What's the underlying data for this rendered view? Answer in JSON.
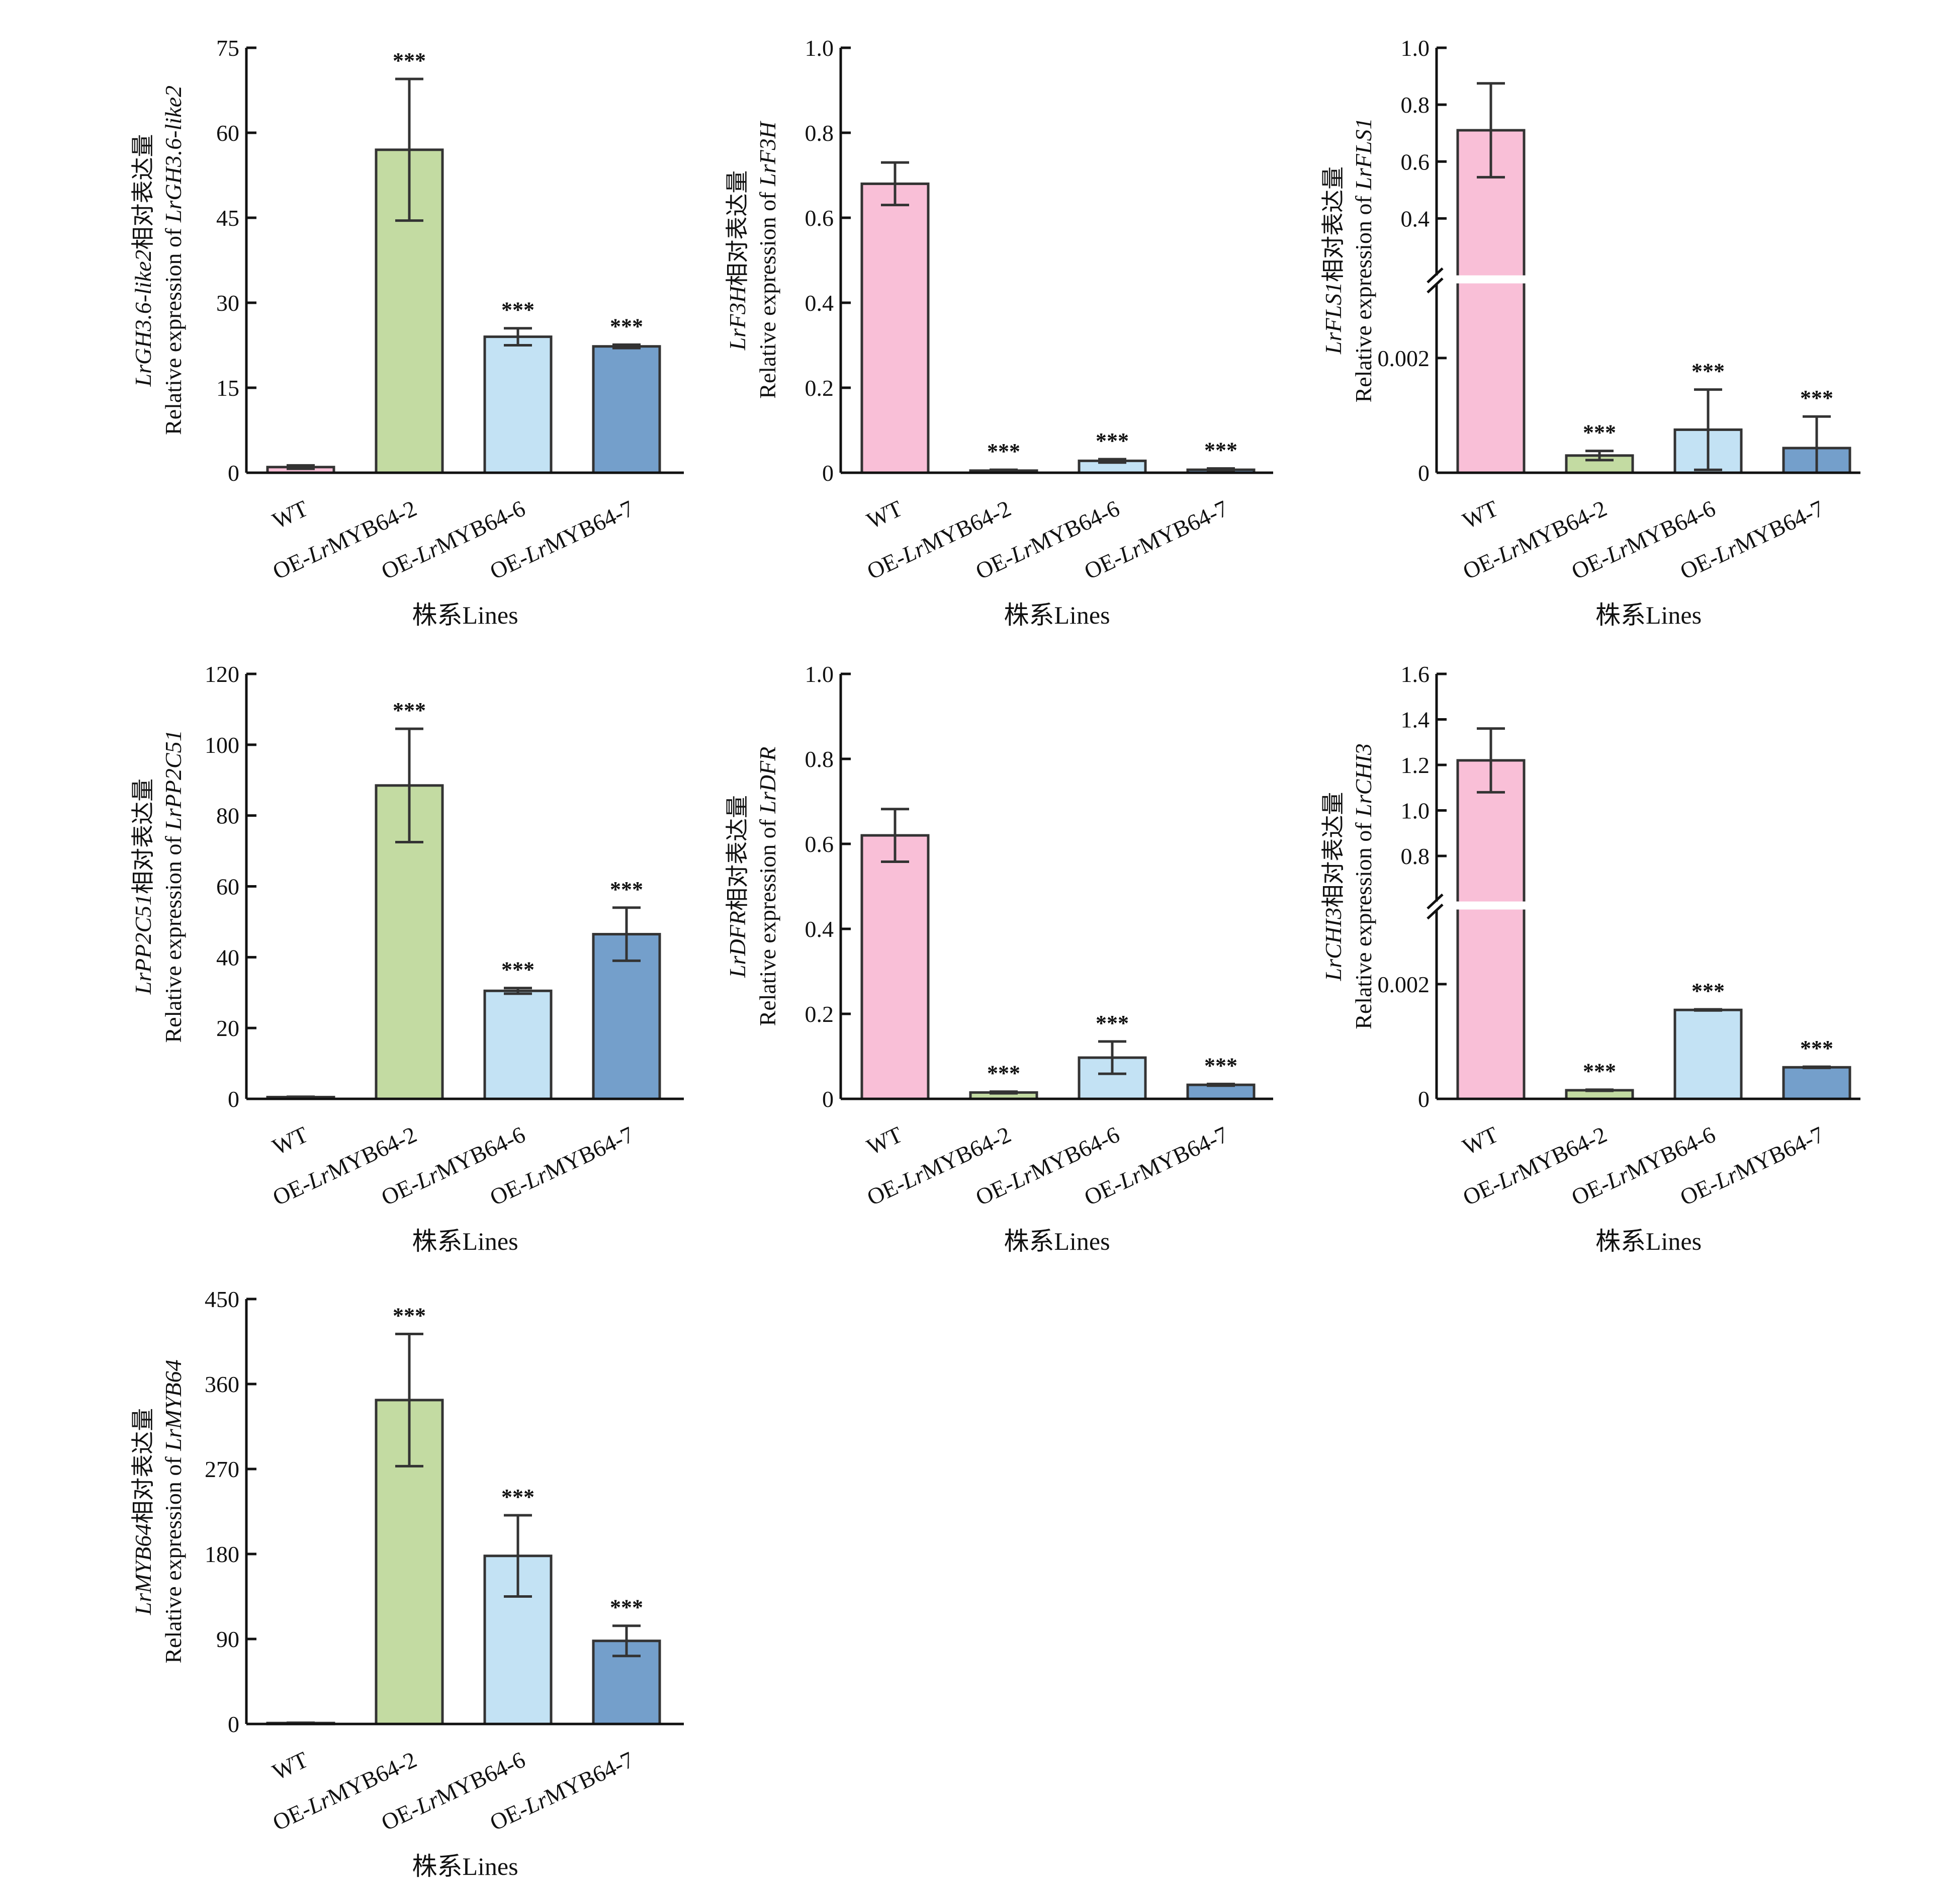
{
  "chart_data": [
    {
      "type": "bar",
      "gene": "LrGH3.6-like2",
      "ylabel_cn": "相对表达量",
      "ylabel_en": "Relative expression of ",
      "xlabel": "株系Lines",
      "categories": [
        "WT",
        "OE-LrMYB64-2",
        "OE-LrMYB64-6",
        "OE-LrMYB64-7"
      ],
      "values": [
        1.0,
        57.0,
        24.0,
        22.3
      ],
      "errors": [
        0.3,
        12.5,
        1.5,
        0.3
      ],
      "significance": [
        "",
        "***",
        "***",
        "***"
      ],
      "ylim": [
        0,
        75
      ],
      "ticks": [
        0,
        15,
        30,
        45,
        60,
        75
      ],
      "tick_labels": [
        "0",
        "15",
        "30",
        "45",
        "60",
        "75"
      ]
    },
    {
      "type": "bar",
      "gene": "LrF3H",
      "ylabel_cn": "相对表达量",
      "ylabel_en": "Relative expression of ",
      "xlabel": "株系Lines",
      "categories": [
        "WT",
        "OE-LrMYB64-2",
        "OE-LrMYB64-6",
        "OE-LrMYB64-7"
      ],
      "values": [
        0.68,
        0.005,
        0.028,
        0.007
      ],
      "errors": [
        0.05,
        0.002,
        0.004,
        0.003
      ],
      "significance": [
        "",
        "***",
        "***",
        "***"
      ],
      "ylim": [
        0,
        1.0
      ],
      "ticks": [
        0,
        0.2,
        0.4,
        0.6,
        0.8,
        1.0
      ],
      "tick_labels": [
        "0",
        "0.2",
        "0.4",
        "0.6",
        "0.8",
        "1.0"
      ]
    },
    {
      "type": "bar",
      "broken_axis": true,
      "gene": "LrFLS1",
      "ylabel_cn": "相对表达量",
      "ylabel_en": "Relative expression of ",
      "xlabel": "株系Lines",
      "categories": [
        "WT",
        "OE-LrMYB64-2",
        "OE-LrMYB64-6",
        "OE-LrMYB64-7"
      ],
      "values": [
        0.71,
        0.0003,
        0.00075,
        0.00043
      ],
      "errors": [
        0.165,
        8e-05,
        0.0007,
        0.00055
      ],
      "significance": [
        "",
        "***",
        "***",
        "***"
      ],
      "lower_range": [
        0,
        0.0033
      ],
      "lower_ticks": [
        0,
        0.002
      ],
      "lower_tick_labels": [
        "0",
        "0.002"
      ],
      "upper_range": [
        0.2,
        1.0
      ],
      "upper_ticks": [
        0.4,
        0.6,
        0.8,
        1.0
      ],
      "upper_tick_labels": [
        "0.4",
        "0.6",
        "0.8",
        "1.0"
      ]
    },
    {
      "type": "bar",
      "gene": "LrPP2C51",
      "ylabel_cn": "相对表达量",
      "ylabel_en": "Relative expression of ",
      "xlabel": "株系Lines",
      "categories": [
        "WT",
        "OE-LrMYB64-2",
        "OE-LrMYB64-6",
        "OE-LrMYB64-7"
      ],
      "values": [
        0.5,
        88.5,
        30.5,
        46.5
      ],
      "errors": [
        0.1,
        16.0,
        0.8,
        7.5
      ],
      "significance": [
        "",
        "***",
        "***",
        "***"
      ],
      "ylim": [
        0,
        120
      ],
      "ticks": [
        0,
        20,
        40,
        60,
        80,
        100,
        120
      ],
      "tick_labels": [
        "0",
        "20",
        "40",
        "60",
        "80",
        "100",
        "120"
      ]
    },
    {
      "type": "bar",
      "gene": "LrDFR",
      "ylabel_cn": "相对表达量",
      "ylabel_en": "Relative expression of ",
      "xlabel": "株系Lines",
      "categories": [
        "WT",
        "OE-LrMYB64-2",
        "OE-LrMYB64-6",
        "OE-LrMYB64-7"
      ],
      "values": [
        0.62,
        0.015,
        0.097,
        0.033
      ],
      "errors": [
        0.062,
        0.002,
        0.038,
        0.002
      ],
      "significance": [
        "",
        "***",
        "***",
        "***"
      ],
      "ylim": [
        0,
        1.0
      ],
      "ticks": [
        0,
        0.2,
        0.4,
        0.6,
        0.8,
        1.0
      ],
      "tick_labels": [
        "0",
        "0.2",
        "0.4",
        "0.6",
        "0.8",
        "1.0"
      ]
    },
    {
      "type": "bar",
      "broken_axis": true,
      "gene": "LrCHI3",
      "ylabel_cn": "相对表达量",
      "ylabel_en": "Relative expression of ",
      "xlabel": "株系Lines",
      "categories": [
        "WT",
        "OE-LrMYB64-2",
        "OE-LrMYB64-6",
        "OE-LrMYB64-7"
      ],
      "values": [
        1.22,
        0.00015,
        0.00155,
        0.00055
      ],
      "errors": [
        0.14,
        1e-05,
        1e-05,
        1e-05
      ],
      "significance": [
        "",
        "***",
        "***",
        "***"
      ],
      "lower_range": [
        0,
        0.0033
      ],
      "lower_ticks": [
        0,
        0.002
      ],
      "lower_tick_labels": [
        "0",
        "0.002"
      ],
      "upper_range": [
        0.6,
        1.6
      ],
      "upper_ticks": [
        0.8,
        1.0,
        1.2,
        1.4,
        1.6
      ],
      "upper_tick_labels": [
        "0.8",
        "1.0",
        "1.2",
        "1.4",
        "1.6"
      ]
    },
    {
      "type": "bar",
      "gene": "LrMYB64",
      "ylabel_cn": "相对表达量",
      "ylabel_en": "Relative expression of ",
      "xlabel": "株系Lines",
      "categories": [
        "WT",
        "OE-LrMYB64-2",
        "OE-LrMYB64-6",
        "OE-LrMYB64-7"
      ],
      "values": [
        1.0,
        343,
        178,
        88
      ],
      "errors": [
        0.3,
        70,
        43,
        16
      ],
      "significance": [
        "",
        "***",
        "***",
        "***"
      ],
      "ylim": [
        0,
        450
      ],
      "ticks": [
        0,
        90,
        180,
        270,
        360,
        450
      ],
      "tick_labels": [
        "0",
        "90",
        "180",
        "270",
        "360",
        "450"
      ]
    }
  ],
  "colors": {
    "WT": "#f9bfd7",
    "OE-LrMYB64-2": "#c3dba2",
    "OE-LrMYB64-6": "#c3e2f4",
    "OE-LrMYB64-7": "#749fcb"
  }
}
